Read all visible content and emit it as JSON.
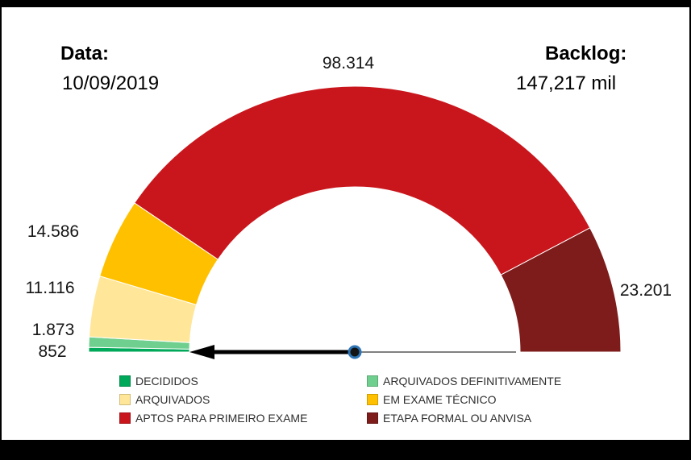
{
  "header": {
    "date_label": "Data:",
    "date_value": "10/09/2019",
    "backlog_label": "Backlog:",
    "backlog_value": "147,217 mil"
  },
  "chart_data": {
    "type": "gauge",
    "shape": "half-donut",
    "start_angle_deg": 180,
    "end_angle_deg": 0,
    "needle_angle_deg": 180,
    "legend_position": "bottom",
    "series": [
      {
        "name": "DECIDIDOS",
        "value": 852,
        "label": "852",
        "color": "#00A859"
      },
      {
        "name": "ARQUIVADOS DEFINITIVAMENTE",
        "value": 1873,
        "label": "1.873",
        "color": "#6FCF8E"
      },
      {
        "name": "ARQUIVADOS",
        "value": 11116,
        "label": "11.116",
        "color": "#FFE699"
      },
      {
        "name": "EM EXAME TÉCNICO",
        "value": 14586,
        "label": "14.586",
        "color": "#FFC000"
      },
      {
        "name": "APTOS PARA PRIMEIRO EXAME",
        "value": 98314,
        "label": "98.314",
        "color": "#C9161C"
      },
      {
        "name": "ETAPA FORMAL OU ANVISA",
        "value": 23201,
        "label": "23.201",
        "color": "#7E1B1B"
      }
    ]
  }
}
